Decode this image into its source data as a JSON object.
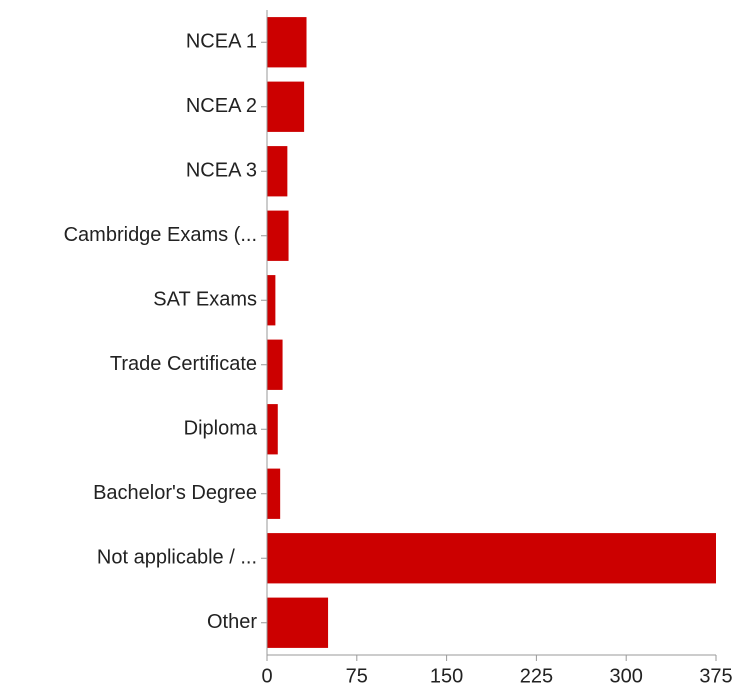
{
  "chart_data": {
    "type": "hbar",
    "categories": [
      "NCEA 1",
      "NCEA 2",
      "NCEA 3",
      "Cambridge Exams (...",
      "SAT Exams",
      "Trade Certificate",
      "Diploma",
      "Bachelor's Degree",
      "Not applicable / ...",
      "Other"
    ],
    "values": [
      33,
      31,
      17,
      18,
      7,
      13,
      9,
      11,
      375,
      51
    ],
    "color": "#cc0000",
    "xlim": [
      0,
      375
    ],
    "xticks": [
      0,
      75,
      150,
      225,
      300,
      375
    ],
    "grid": false
  }
}
